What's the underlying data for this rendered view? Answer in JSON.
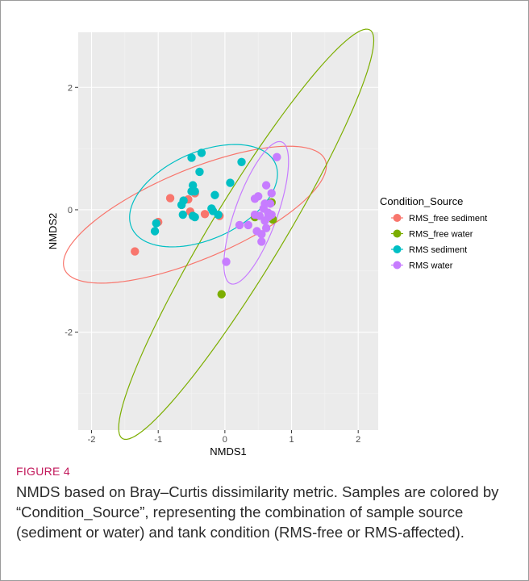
{
  "caption": {
    "label": "FIGURE 4",
    "text": "NMDS based on Bray–Curtis dissimilarity metric. Samples are colored by “Condition_Source”, representing the combination of sample source (sediment or water) and tank condition (RMS-free or RMS-affected)."
  },
  "chart_data": {
    "type": "scatter",
    "xlabel": "NMDS1",
    "ylabel": "NMDS2",
    "xlim": [
      -2.2,
      2.3
    ],
    "ylim": [
      -3.6,
      2.9
    ],
    "x_ticks": [
      -2,
      -1,
      0,
      1,
      2
    ],
    "y_ticks": [
      -2,
      0,
      2
    ],
    "grid": true,
    "legend": {
      "title": "Condition_Source",
      "placement": "right"
    },
    "series": [
      {
        "name": "RMS_free sediment",
        "color": "#F8766D",
        "points": [
          [
            -1.35,
            -0.68
          ],
          [
            -1.0,
            -0.2
          ],
          [
            -0.82,
            0.19
          ],
          [
            -0.55,
            0.17
          ],
          [
            -0.52,
            -0.03
          ],
          [
            -0.45,
            0.27
          ],
          [
            -0.3,
            -0.07
          ],
          [
            -0.08,
            -0.1
          ]
        ],
        "ellipse": {
          "center": [
            -0.45,
            -0.08
          ],
          "rx": 2.15,
          "ry": 0.72,
          "angle_deg": 25
        }
      },
      {
        "name": "RMS_free water",
        "color": "#7CAE00",
        "points": [
          [
            -0.05,
            -1.38
          ],
          [
            0.45,
            -0.12
          ],
          [
            0.7,
            0.12
          ],
          [
            0.72,
            -0.16
          ]
        ],
        "ellipse": {
          "center": [
            0.32,
            -0.4
          ],
          "rx": 3.82,
          "ry": 0.55,
          "angle_deg": 61
        }
      },
      {
        "name": "RMS sediment",
        "color": "#00BFC4",
        "points": [
          [
            -1.05,
            -0.35
          ],
          [
            -1.03,
            -0.22
          ],
          [
            -0.65,
            0.08
          ],
          [
            -0.62,
            0.15
          ],
          [
            -0.63,
            -0.08
          ],
          [
            -0.5,
            0.85
          ],
          [
            -0.48,
            0.4
          ],
          [
            -0.5,
            0.3
          ],
          [
            -0.45,
            0.3
          ],
          [
            -0.48,
            -0.1
          ],
          [
            -0.45,
            -0.12
          ],
          [
            -0.38,
            0.62
          ],
          [
            -0.35,
            0.93
          ],
          [
            -0.2,
            0.02
          ],
          [
            -0.18,
            -0.02
          ],
          [
            -0.15,
            0.24
          ],
          [
            -0.1,
            -0.08
          ],
          [
            0.08,
            0.44
          ],
          [
            0.25,
            0.78
          ]
        ],
        "ellipse": {
          "center": [
            -0.32,
            0.23
          ],
          "rx": 1.2,
          "ry": 0.7,
          "angle_deg": 28
        }
      },
      {
        "name": "RMS water",
        "color": "#C77CFF",
        "points": [
          [
            0.02,
            -0.85
          ],
          [
            0.22,
            -0.25
          ],
          [
            0.35,
            -0.25
          ],
          [
            0.45,
            0.18
          ],
          [
            0.45,
            -0.08
          ],
          [
            0.48,
            -0.35
          ],
          [
            0.5,
            0.22
          ],
          [
            0.52,
            -0.1
          ],
          [
            0.55,
            -0.4
          ],
          [
            0.55,
            -0.52
          ],
          [
            0.58,
            0.02
          ],
          [
            0.6,
            0.1
          ],
          [
            0.6,
            -0.18
          ],
          [
            0.62,
            -0.3
          ],
          [
            0.62,
            0.4
          ],
          [
            0.65,
            -0.05
          ],
          [
            0.65,
            -0.12
          ],
          [
            0.68,
            0.1
          ],
          [
            0.7,
            0.27
          ],
          [
            0.7,
            -0.08
          ],
          [
            0.78,
            0.86
          ]
        ],
        "ellipse": {
          "center": [
            0.47,
            -0.05
          ],
          "rx": 1.22,
          "ry": 0.32,
          "angle_deg": 72
        }
      }
    ]
  }
}
